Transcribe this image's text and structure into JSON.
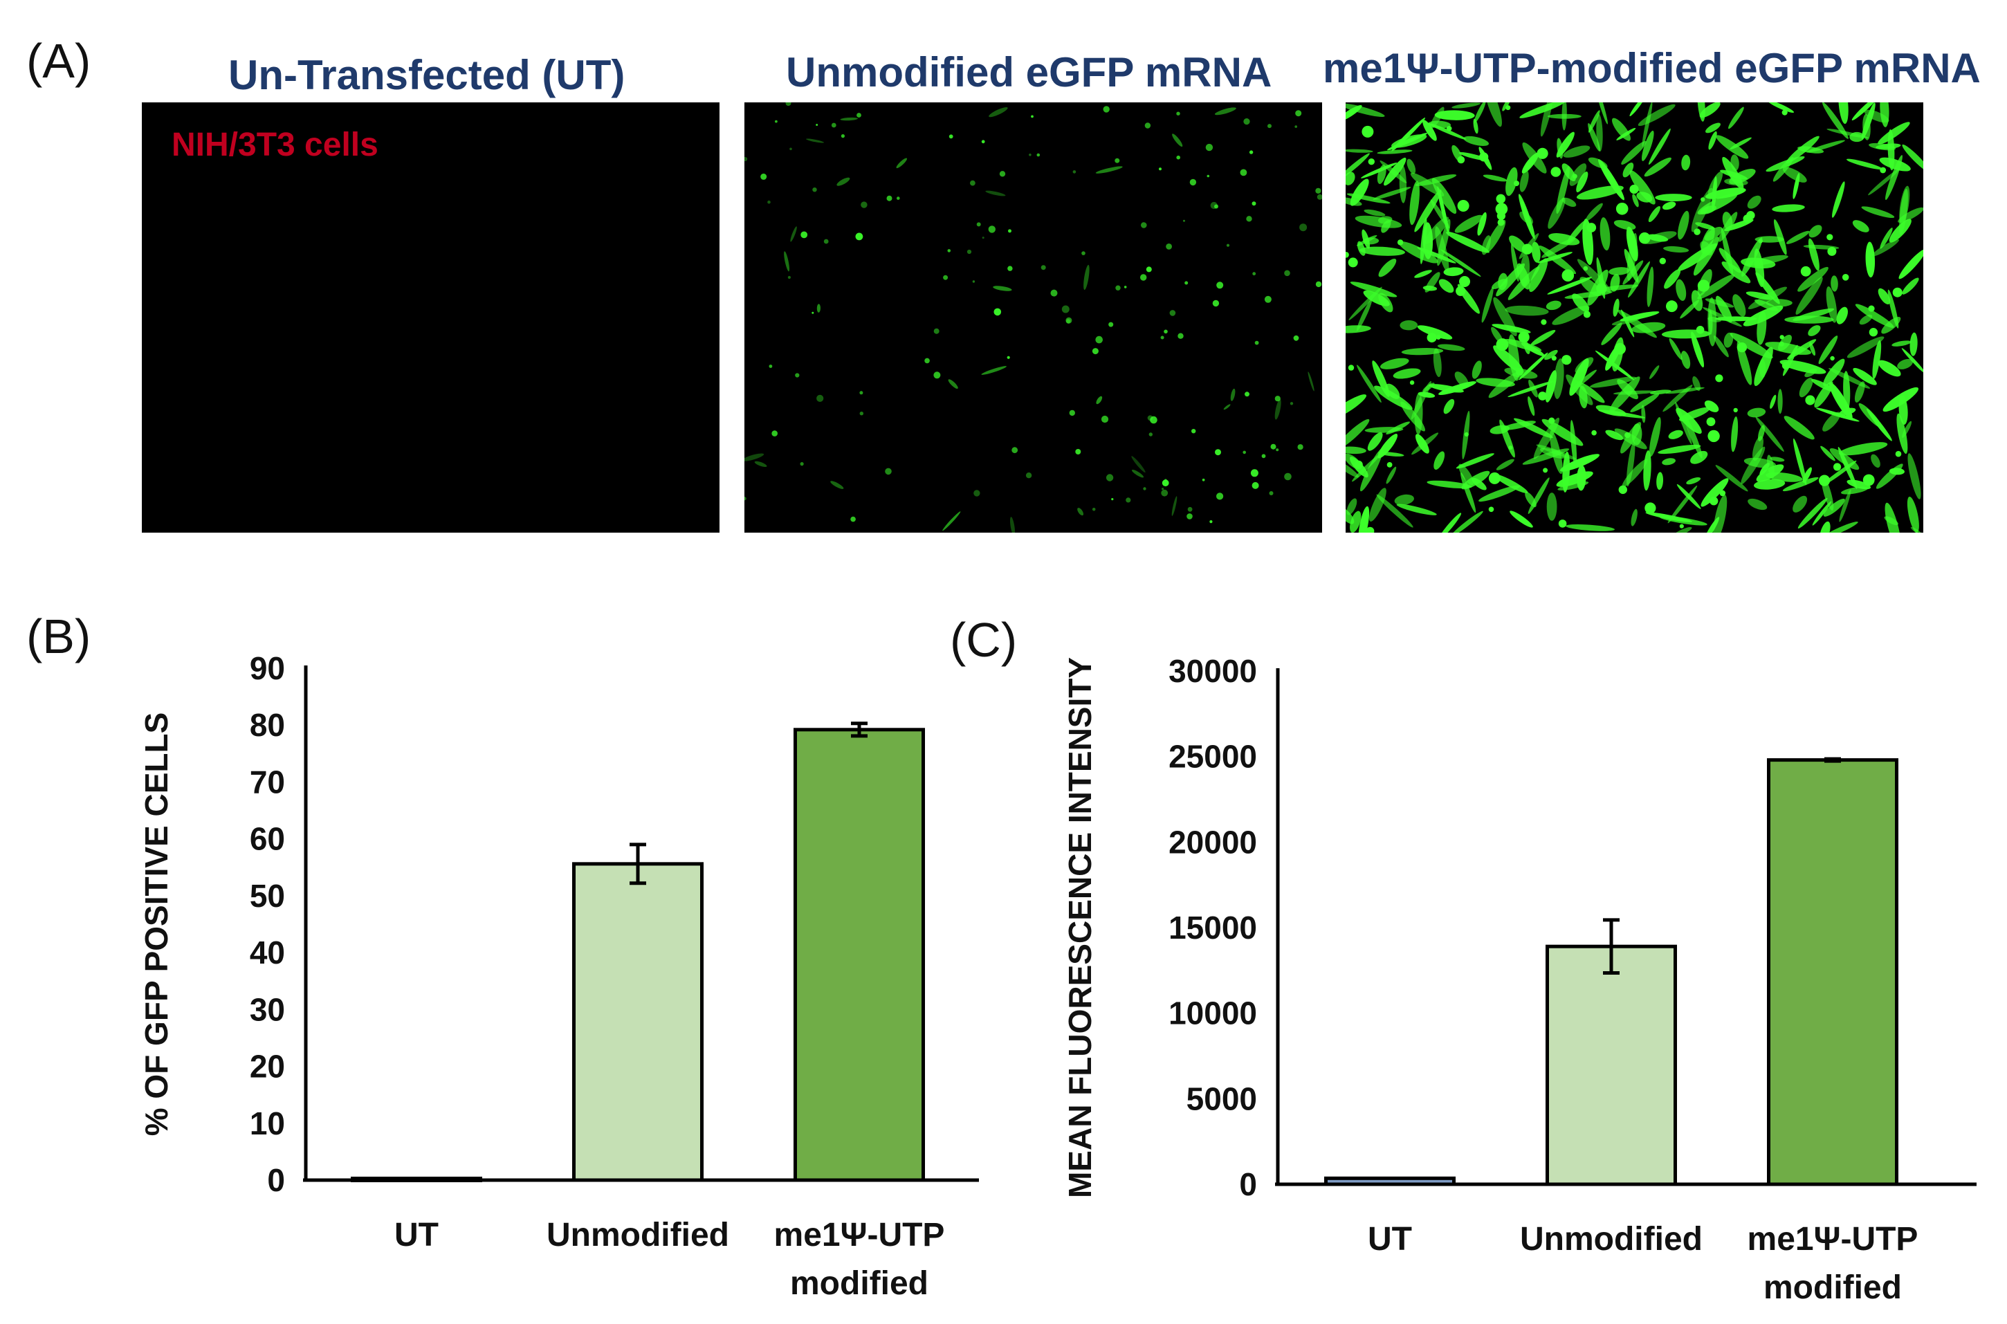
{
  "panels": {
    "a_label": "(A)",
    "b_label": "(B)",
    "c_label": "(C)"
  },
  "images": [
    {
      "title": "Un-Transfected (UT)",
      "overlay_label": "NIH/3T3 cells",
      "fluorescence": "none"
    },
    {
      "title": "Unmodified eGFP mRNA",
      "fluorescence": "sparse"
    },
    {
      "title": "me1Ψ-UTP-modified eGFP mRNA",
      "fluorescence": "dense"
    }
  ],
  "colors": {
    "title": "#1f3a6b",
    "overlay": "#c0001f",
    "ut_bar": "#7f9cc5",
    "unmodified_bar": "#c5e0b4",
    "modified_bar": "#70ad47",
    "gfp": "#3cff2a"
  },
  "chart_data": [
    {
      "type": "bar",
      "panel": "(B)",
      "ylabel": "% OF GFP POSITIVE CELLS",
      "ylim": [
        0,
        90
      ],
      "yticks": [
        "0",
        "10",
        "20",
        "30",
        "40",
        "50",
        "60",
        "70",
        "80",
        "90"
      ],
      "categories": [
        [
          "UT"
        ],
        [
          "Unmodified"
        ],
        [
          "me1Ψ-UTP",
          "modified"
        ]
      ],
      "values": [
        0.3,
        55.6,
        79.2
      ],
      "errors": [
        0,
        3.4,
        1.1
      ],
      "grid": false
    },
    {
      "type": "bar",
      "panel": "(C)",
      "ylabel": "MEAN FLUORESCENCE INTENSITY",
      "ylim": [
        0,
        30000
      ],
      "yticks": [
        "0",
        "5000",
        "10000",
        "15000",
        "20000",
        "25000",
        "30000"
      ],
      "categories": [
        [
          "UT"
        ],
        [
          "Unmodified"
        ],
        [
          "me1Ψ-UTP",
          "modified"
        ]
      ],
      "values": [
        350,
        13900,
        24800
      ],
      "errors": [
        0,
        1550,
        60
      ],
      "grid": false
    }
  ]
}
